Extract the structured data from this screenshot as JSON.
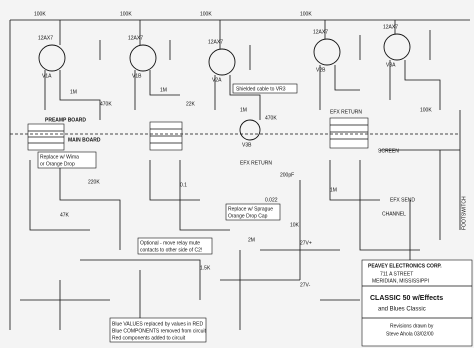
{
  "boards": {
    "preamp": "PREAMP BOARD",
    "main": "MAIN BOARD"
  },
  "tubes": [
    {
      "type": "12AX7",
      "section": "V1A"
    },
    {
      "type": "12AX7",
      "section": "V1B"
    },
    {
      "type": "12AX7",
      "section": "V2A"
    },
    {
      "type": "12AX7",
      "section": "V2B"
    },
    {
      "type": "12AX7",
      "section": "V3A"
    },
    {
      "type": "12AX7",
      "section": "V3B"
    }
  ],
  "signals": {
    "efx_return_top": "EFX RETURN",
    "efx_return_mid": "EFX RETURN",
    "efx_send": "EFX SEND",
    "channel": "CHANNEL",
    "screen": "SCREEN",
    "footswitch": "FOOTSWITCH"
  },
  "component_values": [
    "100K",
    "1M",
    "470K",
    "100K",
    "1M",
    "22K",
    "100K",
    "1M",
    "470K",
    "100K",
    "200pF",
    "0.022",
    "10K",
    "1M",
    "2M",
    "100K",
    "220K",
    "0.1",
    "47K",
    "1.5K",
    "27V+",
    "27V-"
  ],
  "notes": {
    "cap_replace": [
      "Replace w/ Wima",
      "or Orange Drop"
    ],
    "shielded": "Shielded cable to VR3",
    "relay": [
      "Optional - move relay mute",
      "contacts to other side of C2!"
    ],
    "sprague": [
      "Replace w/ Sprague",
      "Orange Drop Cap"
    ],
    "legend": [
      "Blue VALUES replaced by values in RED",
      "Blue COMPONENTS removed from circuit",
      "Red components added to circuit"
    ]
  },
  "title_block": {
    "company": "PEAVEY ELECTRONICS CORP.",
    "address": [
      "711 A STREET",
      "MERIDIAN, MISSISSIPPI"
    ],
    "model": "CLASSIC 50 w/Effects",
    "model_sub": "and Blues Classic",
    "revisions": "Revisions drawn by",
    "reviser": "Steve Ahola 03/02/00"
  }
}
